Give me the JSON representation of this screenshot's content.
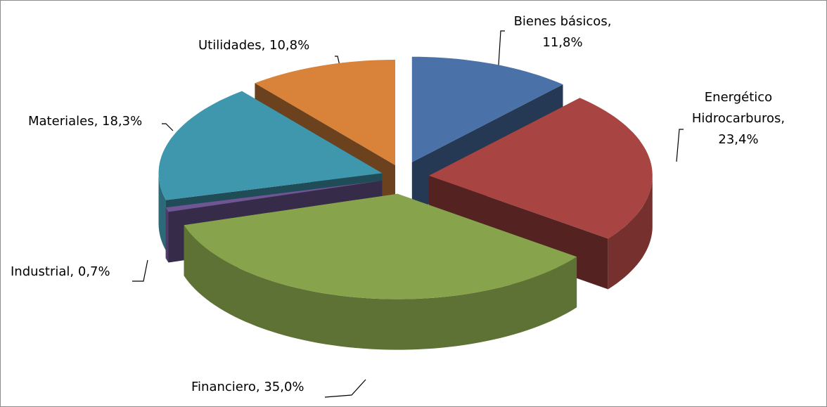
{
  "chart_data": {
    "type": "pie3d",
    "values": [
      11.8,
      23.4,
      35.0,
      0.7,
      18.3,
      10.8
    ],
    "value_labels": [
      "Bienes básicos, 11,8%",
      "Energético Hidrocarburos, 23,4%",
      "Financiero, 35,0%",
      "Industrial, 0,7%",
      "Materiales, 18,3%",
      "Utilidades, 10,8%"
    ],
    "colors": [
      "#4a72a8",
      "#a84442",
      "#87a34c",
      "#6e5694",
      "#3f97ae",
      "#d8823a"
    ]
  }
}
